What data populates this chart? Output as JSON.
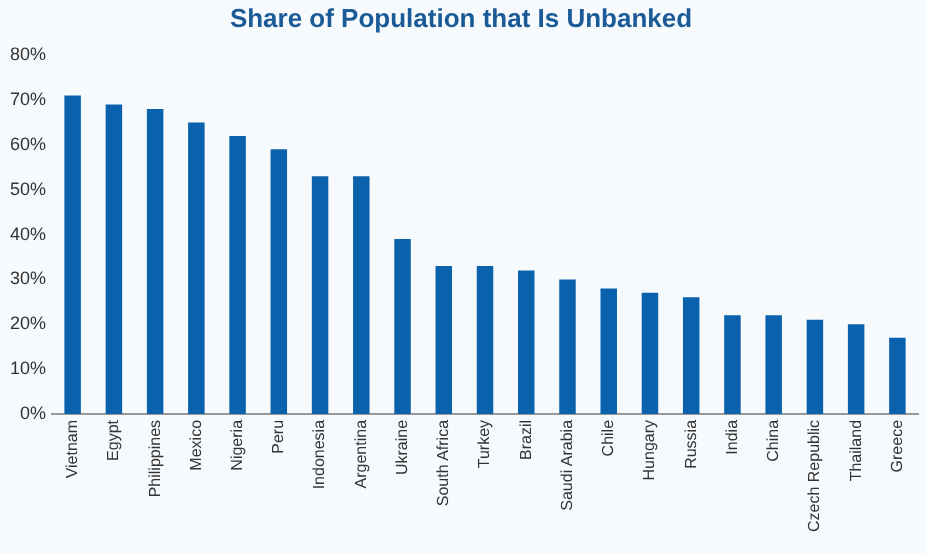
{
  "chart_data": {
    "type": "bar",
    "title": "Share of Population that Is Unbanked",
    "categories": [
      "Vietnam",
      "Egypt",
      "Philippines",
      "Mexico",
      "Nigeria",
      "Peru",
      "Indonesia",
      "Argentina",
      "Ukraine",
      "South Africa",
      "Turkey",
      "Brazil",
      "Saudi Arabia",
      "Chile",
      "Hungary",
      "Russia",
      "India",
      "China",
      "Czech Republic",
      "Thailand",
      "Greece"
    ],
    "values": [
      71,
      69,
      68,
      65,
      62,
      59,
      53,
      53,
      39,
      33,
      33,
      32,
      30,
      28,
      27,
      26,
      22,
      22,
      21,
      20,
      17
    ],
    "color": "#0a62ad",
    "ylim": [
      0,
      80
    ],
    "yticks": [
      {
        "value": 0,
        "label": "0%"
      },
      {
        "value": 10,
        "label": "10%"
      },
      {
        "value": 20,
        "label": "20%"
      },
      {
        "value": 30,
        "label": "30%"
      },
      {
        "value": 40,
        "label": "40%"
      },
      {
        "value": 50,
        "label": "50%"
      },
      {
        "value": 60,
        "label": "60%"
      },
      {
        "value": 70,
        "label": "70%"
      },
      {
        "value": 80,
        "label": "80%"
      }
    ],
    "grid": false,
    "legend": false
  }
}
